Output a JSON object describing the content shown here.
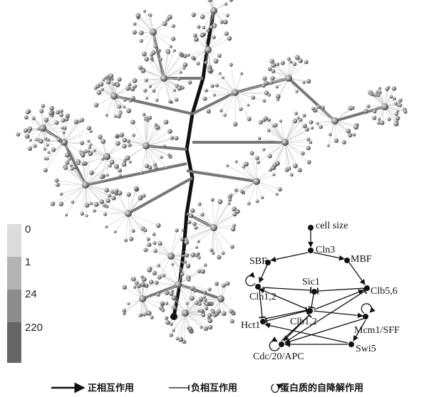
{
  "scale_bar": {
    "labels": [
      "0",
      "1",
      "24",
      "220"
    ]
  },
  "regulatory_network": {
    "nodes": [
      "cell size",
      "Cln3",
      "SBF",
      "MBF",
      "Sic1",
      "Cln1,2",
      "Clb5,6",
      "Hct1",
      "Clb1,2",
      "Mcm1/SFF",
      "Swi5",
      "Cdc/20/APC"
    ]
  },
  "legend": {
    "items": [
      "正相互作用",
      "负相互作用",
      "蛋白质的自降解作用"
    ]
  }
}
